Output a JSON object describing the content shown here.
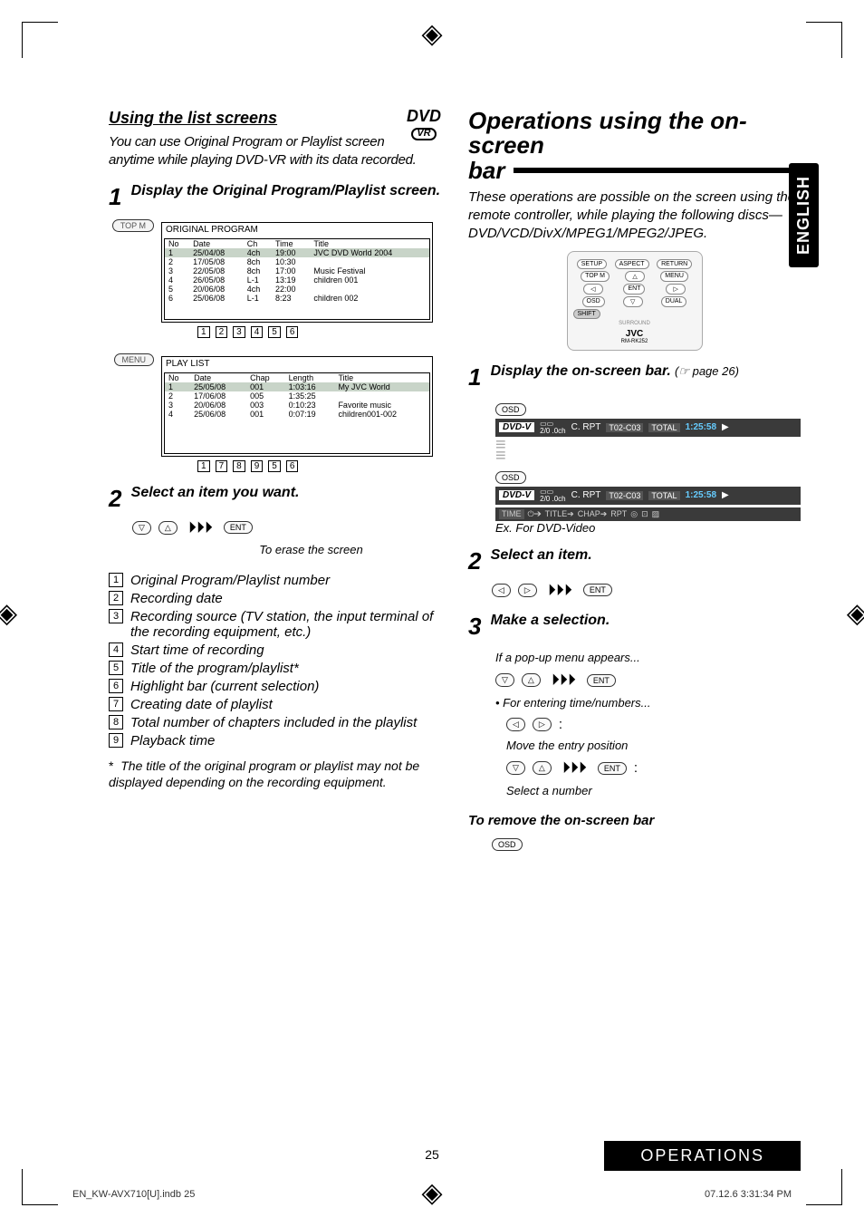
{
  "page": {
    "number": "25",
    "footer_left": "EN_KW-AVX710[U].indb   25",
    "footer_right": "07.12.6   3:31:34 PM",
    "lang_tab": "ENGLISH",
    "ops_footer": "OPERATIONS"
  },
  "left": {
    "heading": "Using the list screens",
    "dvd_badge_top": "DVD",
    "dvd_badge_bottom": "VR",
    "intro": "You can use Original Program or Playlist screen anytime while playing DVD-VR with its data recorded.",
    "step1_num": "1",
    "step1_text": "Display the Original Program/Playlist screen.",
    "topm_label": "TOP M",
    "menu_label": "MENU",
    "orig_title": "ORIGINAL PROGRAM",
    "orig_cols": [
      "No",
      "Date",
      "Ch",
      "Time",
      "Title"
    ],
    "orig_rows": [
      [
        "1",
        "25/04/08",
        "4ch",
        "19:00",
        "JVC DVD World 2004"
      ],
      [
        "2",
        "17/05/08",
        "8ch",
        "10:30",
        ""
      ],
      [
        "3",
        "22/05/08",
        "8ch",
        "17:00",
        "Music Festival"
      ],
      [
        "4",
        "26/05/08",
        "L-1",
        "13:19",
        "children 001"
      ],
      [
        "5",
        "20/06/08",
        "4ch",
        "22:00",
        ""
      ],
      [
        "6",
        "25/06/08",
        "L-1",
        "8:23",
        "children 002"
      ]
    ],
    "playlist_title": "PLAY LIST",
    "playlist_cols": [
      "No",
      "Date",
      "Chap",
      "Length",
      "Title"
    ],
    "playlist_rows": [
      [
        "1",
        "25/05/08",
        "001",
        "1:03:16",
        "My JVC World"
      ],
      [
        "2",
        "17/06/08",
        "005",
        "1:35:25",
        ""
      ],
      [
        "3",
        "20/06/08",
        "003",
        "0:10:23",
        "Favorite music"
      ],
      [
        "4",
        "25/06/08",
        "001",
        "0:07:19",
        "children001-002"
      ]
    ],
    "step2_num": "2",
    "step2_text": "Select an item you want.",
    "erase_text": "To erase the screen",
    "legend": [
      "Original Program/Playlist number",
      "Recording date",
      "Recording source (TV station, the input terminal of the recording equipment, etc.)",
      "Start time of recording",
      "Title of the program/playlist*",
      "Highlight bar (current selection)",
      "Creating date of playlist",
      "Total number of chapters included in the playlist",
      "Playback time"
    ],
    "footnote": "The title of the original program or playlist may not be displayed depending on the recording equipment.",
    "footnote_mark": "*"
  },
  "right": {
    "section_title_l1": "Operations using the on-screen",
    "section_title_l2": "bar",
    "intro": "These operations are possible on the screen using the remote controller, while playing the following discs—DVD/VCD/DivX/MPEG1/MPEG2/JPEG.",
    "remote": {
      "row1": [
        "SETUP",
        "ASPECT",
        "RETURN"
      ],
      "row2": [
        "TOP M",
        "△",
        "MENU"
      ],
      "row3": [
        "◁",
        "ENT",
        "▷"
      ],
      "row4": [
        "OSD",
        "▽",
        "DUAL"
      ],
      "shift": "SHIFT",
      "surround": "SURROUND",
      "brand": "JVC",
      "model": "RM-RK252"
    },
    "step1_num": "1",
    "step1_text": "Display the on-screen bar.",
    "step1_ref": "(☞ page 26)",
    "osd_btn": "OSD",
    "bar": {
      "dvdv": "DVD-V",
      "dd": "DOLBY D",
      "ch": "2/0 .0ch",
      "crpt": "C. RPT",
      "t": "T02-C03",
      "total": "TOTAL",
      "time": "1:25:58"
    },
    "bar2_items": [
      "TIME",
      "⏻➔",
      "TITLE➔",
      "CHAP➔",
      "RPT",
      "◎",
      "⊡",
      "▨"
    ],
    "ex_text": "Ex. For DVD-Video",
    "step2_num": "2",
    "step2_text": "Select an item.",
    "step3_num": "3",
    "step3_text": "Make a selection.",
    "popup_text": "If a pop-up menu appears...",
    "entering_text": "For entering time/numbers...",
    "move_text": "Move the entry position",
    "select_text": "Select a number",
    "remove_heading": "To remove the on-screen bar",
    "ent_label": "ENT"
  },
  "markers": {
    "orig": [
      "1",
      "2",
      "3",
      "4",
      "5",
      "6"
    ],
    "playlist": [
      "1",
      "7",
      "8",
      "9",
      "5",
      "6"
    ]
  }
}
